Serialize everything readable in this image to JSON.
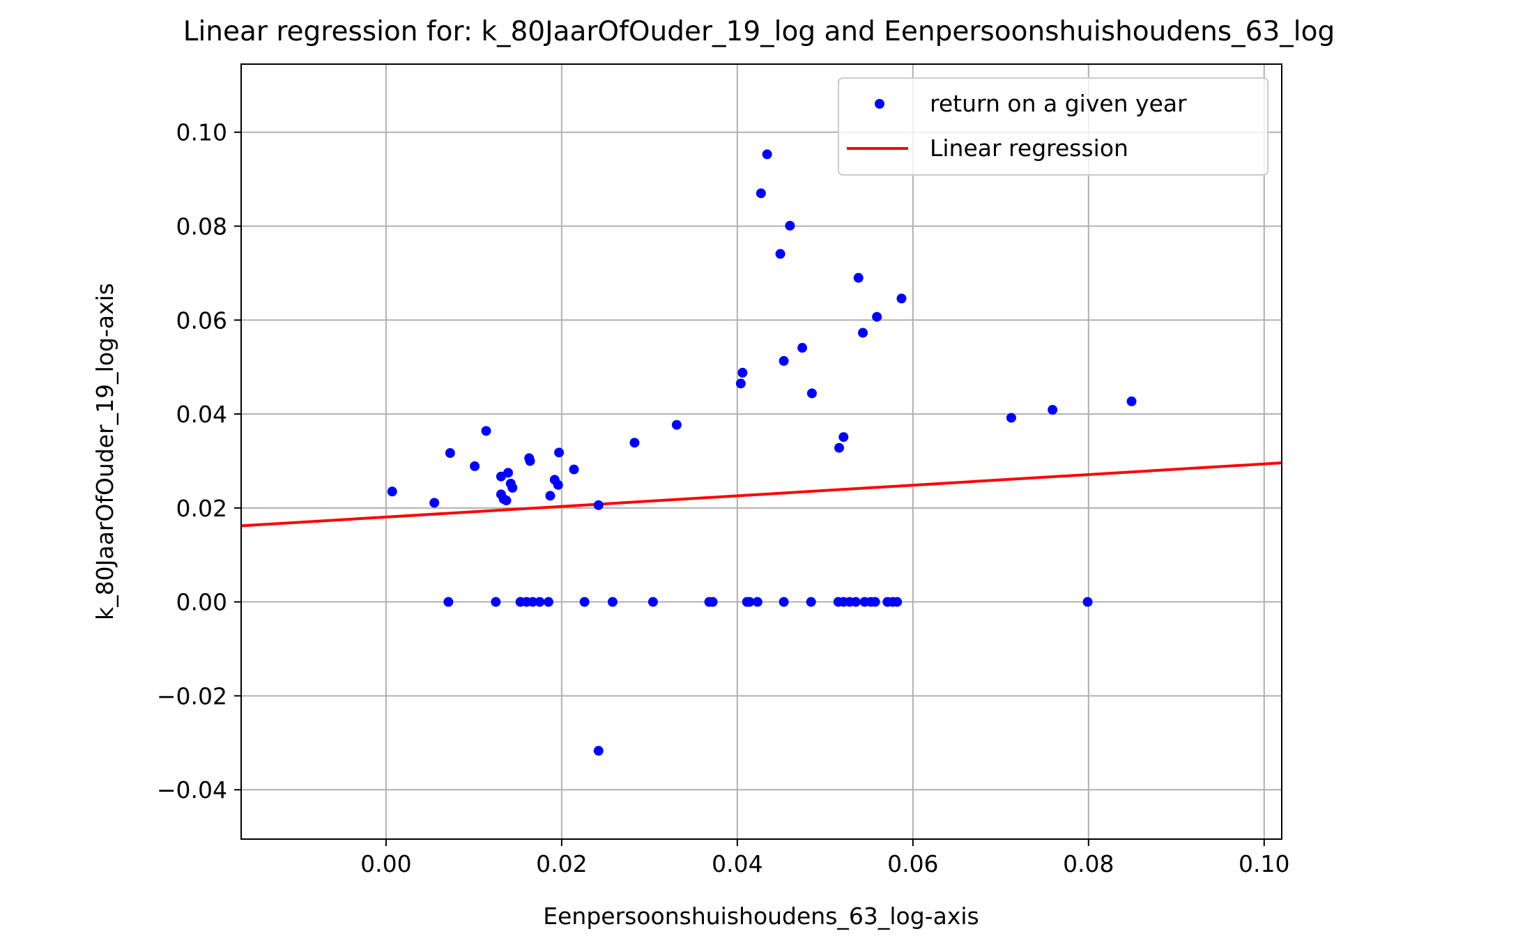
{
  "chart_data": {
    "type": "scatter",
    "title": "Linear regression for: k_80JaarOfOuder_19_log and Eenpersoonshuishoudens_63_log",
    "xlabel": "Eenpersoonshuishoudens_63_log-axis",
    "ylabel": "k_80JaarOfOuder_19_log-axis",
    "xlim": [
      -0.0165,
      0.102
    ],
    "ylim": [
      -0.0505,
      0.1145
    ],
    "xticks": [
      0.0,
      0.02,
      0.04,
      0.06,
      0.08,
      0.1
    ],
    "xtick_labels": [
      "0.00",
      "0.02",
      "0.04",
      "0.06",
      "0.08",
      "0.10"
    ],
    "yticks": [
      -0.04,
      -0.02,
      0.0,
      0.02,
      0.04,
      0.06,
      0.08,
      0.1
    ],
    "ytick_labels": [
      "−0.04",
      "−0.02",
      "0.00",
      "0.02",
      "0.04",
      "0.06",
      "0.08",
      "0.10"
    ],
    "grid": true,
    "legend_position": "top-right",
    "series": [
      {
        "name": "return on a given year",
        "kind": "scatter",
        "color": "#0000ff",
        "points": [
          [
            0.0007,
            0.0235
          ],
          [
            0.0055,
            0.0211
          ],
          [
            0.0073,
            0.0317
          ],
          [
            0.0101,
            0.0289
          ],
          [
            0.0114,
            0.0364
          ],
          [
            0.0131,
            0.0229
          ],
          [
            0.0131,
            0.0267
          ],
          [
            0.0134,
            0.0219
          ],
          [
            0.0137,
            0.0216
          ],
          [
            0.0139,
            0.0275
          ],
          [
            0.0142,
            0.0252
          ],
          [
            0.0144,
            0.0243
          ],
          [
            0.0163,
            0.0306
          ],
          [
            0.0164,
            0.03
          ],
          [
            0.0187,
            0.0226
          ],
          [
            0.0192,
            0.026
          ],
          [
            0.0196,
            0.0249
          ],
          [
            0.0197,
            0.0318
          ],
          [
            0.0214,
            0.0282
          ],
          [
            0.0242,
            0.0206
          ],
          [
            0.0283,
            0.0339
          ],
          [
            0.0331,
            0.0377
          ],
          [
            0.0404,
            0.0465
          ],
          [
            0.0406,
            0.0488
          ],
          [
            0.0427,
            0.087
          ],
          [
            0.0434,
            0.0953
          ],
          [
            0.0449,
            0.0741
          ],
          [
            0.0453,
            0.0513
          ],
          [
            0.046,
            0.0801
          ],
          [
            0.0474,
            0.0541
          ],
          [
            0.0485,
            0.0444
          ],
          [
            0.0516,
            0.0328
          ],
          [
            0.0521,
            0.0351
          ],
          [
            0.0538,
            0.069
          ],
          [
            0.0543,
            0.0573
          ],
          [
            0.0559,
            0.0607
          ],
          [
            0.0587,
            0.0646
          ],
          [
            0.0712,
            0.0392
          ],
          [
            0.0759,
            0.0409
          ],
          [
            0.0849,
            0.0427
          ],
          [
            0.0071,
            0.0
          ],
          [
            0.0125,
            0.0
          ],
          [
            0.0153,
            0.0
          ],
          [
            0.016,
            0.0
          ],
          [
            0.0167,
            0.0
          ],
          [
            0.0175,
            0.0
          ],
          [
            0.0185,
            0.0
          ],
          [
            0.0226,
            0.0
          ],
          [
            0.0258,
            0.0
          ],
          [
            0.0304,
            0.0
          ],
          [
            0.0368,
            0.0
          ],
          [
            0.0372,
            0.0
          ],
          [
            0.0411,
            0.0
          ],
          [
            0.0414,
            0.0
          ],
          [
            0.0423,
            0.0
          ],
          [
            0.0453,
            0.0
          ],
          [
            0.0484,
            0.0
          ],
          [
            0.0515,
            0.0
          ],
          [
            0.0521,
            0.0
          ],
          [
            0.0528,
            0.0
          ],
          [
            0.0535,
            0.0
          ],
          [
            0.0545,
            0.0
          ],
          [
            0.0552,
            0.0
          ],
          [
            0.0557,
            0.0
          ],
          [
            0.0571,
            0.0
          ],
          [
            0.0577,
            0.0
          ],
          [
            0.0582,
            0.0
          ],
          [
            0.0799,
            0.0
          ],
          [
            0.0242,
            -0.0317
          ]
        ]
      },
      {
        "name": "Linear regression",
        "kind": "line",
        "color": "#ff0000",
        "points": [
          [
            -0.0165,
            0.0162
          ],
          [
            0.102,
            0.0296
          ]
        ]
      }
    ]
  }
}
